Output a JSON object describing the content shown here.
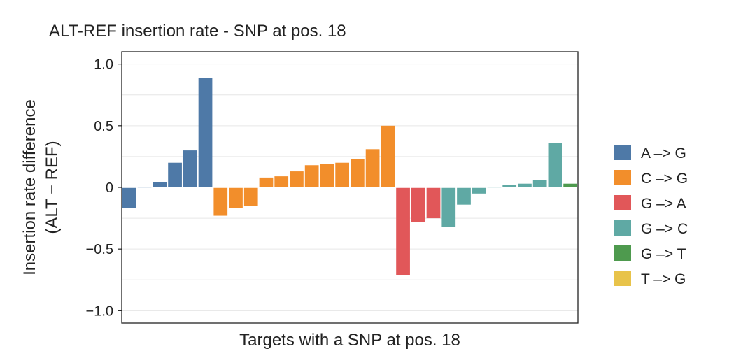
{
  "chart_data": {
    "type": "bar",
    "title": "ALT-REF insertion rate - SNP at pos. 18",
    "xlabel": "Targets with a SNP at pos. 18",
    "ylabel_lines": [
      "Insertion rate difference",
      "(ALT − REF)"
    ],
    "ylim": [
      -1.1,
      1.1
    ],
    "yticks": [
      1.0,
      0.5,
      0,
      -0.5,
      -1.0
    ],
    "ytick_labels": [
      "1.0",
      "0.5",
      "0",
      "−0.5",
      "−1.0"
    ],
    "grid": true,
    "legend_position": "right",
    "series": [
      {
        "name": "A -> G",
        "label": "A –> G",
        "color": "#4e79a7",
        "values": [
          -0.17,
          0.0,
          0.04,
          0.2,
          0.3,
          0.89
        ]
      },
      {
        "name": "C -> G",
        "label": "C –> G",
        "color": "#f28e2b",
        "values": [
          -0.23,
          -0.17,
          -0.15,
          0.08,
          0.09,
          0.13,
          0.18,
          0.19,
          0.2,
          0.23,
          0.31,
          0.5
        ]
      },
      {
        "name": "G -> A",
        "label": "G –> A",
        "color": "#e15759",
        "values": [
          -0.71,
          -0.28,
          -0.25
        ]
      },
      {
        "name": "G -> C",
        "label": "G –> C",
        "color": "#5fa9a4",
        "values": [
          -0.32,
          -0.14,
          -0.05,
          0.0,
          0.02,
          0.03,
          0.06,
          0.36
        ]
      },
      {
        "name": "G -> T",
        "label": "G –> T",
        "color": "#4e9a4e",
        "values": [
          0.03
        ]
      },
      {
        "name": "T -> G",
        "label": "T –> G",
        "color": "#e8c34a",
        "values": []
      }
    ]
  }
}
